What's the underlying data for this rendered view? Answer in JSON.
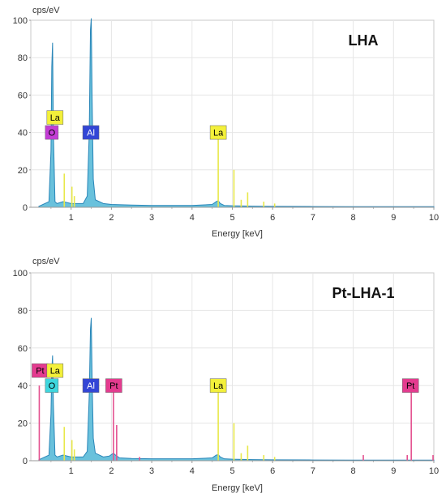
{
  "colors": {
    "spectrum_fill": "#4fb6d6",
    "spectrum_stroke": "#2a86b8",
    "la_line": "#e8e84a",
    "pt_line": "#e4508f",
    "o_badge_top": "#c43dd6",
    "o_badge_bottom": "#3fd7de",
    "al_badge": "#3245d6",
    "la_badge": "#f3f03a",
    "pt_badge": "#e43b8f"
  },
  "chart_data": [
    {
      "type": "line",
      "title": "LHA",
      "ylabel": "cps/eV",
      "xlabel": "Energy [keV]",
      "xlim": [
        0,
        10
      ],
      "ylim": [
        0,
        100
      ],
      "x_ticks": [
        "1",
        "2",
        "3",
        "4",
        "5",
        "6",
        "7",
        "8",
        "9",
        "10"
      ],
      "y_ticks": [
        "0",
        "20",
        "40",
        "60",
        "80",
        "100"
      ],
      "grid": true,
      "series": [
        {
          "kind": "spectrum",
          "x": [
            0.2,
            0.45,
            0.5,
            0.52,
            0.54,
            0.56,
            0.6,
            0.65,
            0.8,
            1.0,
            1.3,
            1.4,
            1.45,
            1.48,
            1.5,
            1.52,
            1.55,
            1.6,
            1.8,
            2.0,
            2.5,
            3.0,
            3.5,
            4.0,
            4.5,
            4.6,
            4.65,
            4.7,
            4.8,
            5.0,
            5.5,
            6.0,
            7.0,
            8.0,
            9.0,
            10.0
          ],
          "y": [
            0.5,
            3,
            30,
            75,
            88,
            40,
            3,
            2,
            3,
            2,
            2,
            6,
            40,
            95,
            101,
            60,
            15,
            4,
            2,
            1.5,
            1.2,
            1,
            1,
            1,
            1.5,
            3,
            3.5,
            2,
            1,
            0.8,
            0.6,
            0.5,
            0.4,
            0.3,
            0.3,
            0.3
          ]
        },
        {
          "kind": "La-lines",
          "x": [
            0.83,
            1.02,
            1.08,
            4.65,
            5.04,
            5.22,
            5.38,
            5.78,
            6.05
          ],
          "y": [
            18,
            11,
            6,
            40,
            20,
            4,
            8,
            3,
            2
          ]
        }
      ],
      "element_labels": [
        {
          "text": "La",
          "energy": 0.6,
          "level": 48,
          "badge": "la_badge",
          "fg": "#000000"
        },
        {
          "text": "O",
          "energy": 0.52,
          "level": 40,
          "badge": "o_badge_top",
          "fg": "#000000"
        },
        {
          "text": "Al",
          "energy": 1.49,
          "level": 40,
          "badge": "al_badge",
          "fg": "#ffffff"
        },
        {
          "text": "La",
          "energy": 4.65,
          "level": 40,
          "badge": "la_badge",
          "fg": "#000000"
        }
      ]
    },
    {
      "type": "line",
      "title": "Pt-LHA-1",
      "ylabel": "cps/eV",
      "xlabel": "Energy [keV]",
      "xlim": [
        0,
        10
      ],
      "ylim": [
        0,
        100
      ],
      "x_ticks": [
        "1",
        "2",
        "3",
        "4",
        "5",
        "6",
        "7",
        "8",
        "9",
        "10"
      ],
      "y_ticks": [
        "0",
        "20",
        "40",
        "60",
        "80",
        "100"
      ],
      "grid": true,
      "series": [
        {
          "kind": "spectrum",
          "x": [
            0.2,
            0.45,
            0.5,
            0.52,
            0.54,
            0.56,
            0.6,
            0.65,
            0.8,
            1.0,
            1.3,
            1.4,
            1.45,
            1.48,
            1.5,
            1.52,
            1.55,
            1.6,
            1.8,
            1.95,
            2.05,
            2.1,
            2.2,
            2.5,
            3.0,
            3.5,
            4.0,
            4.5,
            4.6,
            4.65,
            4.7,
            4.8,
            5.0,
            5.5,
            6.0,
            7.0,
            8.0,
            9.0,
            10.0
          ],
          "y": [
            0.5,
            3,
            25,
            48,
            56,
            30,
            3,
            2,
            3,
            2,
            2,
            5,
            35,
            70,
            76,
            45,
            12,
            4,
            2,
            2.5,
            4,
            3,
            1.5,
            1.2,
            1,
            1,
            1,
            1.5,
            3,
            3.2,
            2,
            1,
            0.8,
            0.6,
            0.5,
            0.4,
            0.3,
            0.3,
            0.3
          ]
        },
        {
          "kind": "La-lines",
          "x": [
            0.83,
            1.02,
            1.08,
            4.65,
            5.04,
            5.22,
            5.38,
            5.78,
            6.05
          ],
          "y": [
            18,
            11,
            6,
            40,
            20,
            4,
            8,
            3,
            2
          ]
        },
        {
          "kind": "Pt-lines",
          "x": [
            0.21,
            2.05,
            2.13,
            2.7,
            8.25,
            9.34,
            9.44,
            9.98
          ],
          "y": [
            40,
            40,
            19,
            2,
            3,
            3,
            40,
            3
          ]
        }
      ],
      "element_labels": [
        {
          "text": "Pt",
          "energy": 0.23,
          "level": 48,
          "badge": "pt_badge",
          "fg": "#000000"
        },
        {
          "text": "La",
          "energy": 0.6,
          "level": 48,
          "badge": "la_badge",
          "fg": "#000000"
        },
        {
          "text": "O",
          "energy": 0.52,
          "level": 40,
          "badge": "o_badge_bottom",
          "fg": "#000000"
        },
        {
          "text": "Al",
          "energy": 1.49,
          "level": 40,
          "badge": "al_badge",
          "fg": "#ffffff"
        },
        {
          "text": "Pt",
          "energy": 2.06,
          "level": 40,
          "badge": "pt_badge",
          "fg": "#000000"
        },
        {
          "text": "La",
          "energy": 4.65,
          "level": 40,
          "badge": "la_badge",
          "fg": "#000000"
        },
        {
          "text": "Pt",
          "energy": 9.42,
          "level": 40,
          "badge": "pt_badge",
          "fg": "#000000"
        }
      ]
    }
  ]
}
